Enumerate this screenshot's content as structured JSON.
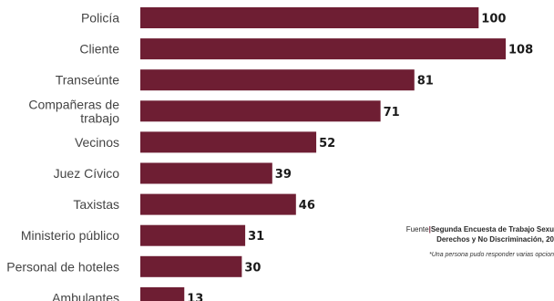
{
  "chart_data": {
    "type": "bar",
    "orientation": "horizontal",
    "categories": [
      "Policía",
      "Cliente",
      "Transeúnte",
      "Compañeras de trabajo",
      "Vecinos",
      "Juez Cívico",
      "Taxistas",
      "Ministerio público",
      "Personal de hoteles",
      "Ambulantes"
    ],
    "category_lines": [
      [
        "Policía"
      ],
      [
        "Cliente"
      ],
      [
        "Transeúnte"
      ],
      [
        "Compañeras de",
        "trabajo"
      ],
      [
        "Vecinos"
      ],
      [
        "Juez Cívico"
      ],
      [
        "Taxistas"
      ],
      [
        "Ministerio público"
      ],
      [
        "Personal de hoteles"
      ],
      [
        "Ambulantes"
      ]
    ],
    "values": [
      100,
      108,
      81,
      71,
      52,
      39,
      46,
      31,
      30,
      13
    ],
    "value_labels": [
      "100",
      "108",
      "81",
      "71",
      "52",
      "39",
      "46",
      "31",
      "30",
      "13"
    ],
    "bar_color": "#6e1e33",
    "xlim": [
      0,
      108
    ],
    "grid": false,
    "legend": "none"
  },
  "source": {
    "prefix": "Fuente",
    "separator": "|",
    "line1": "Segunda Encuesta de Trabajo Sexu",
    "line2": "Derechos y No Discriminación, 20",
    "note": "*Una persona pudo responder varias opcion"
  }
}
